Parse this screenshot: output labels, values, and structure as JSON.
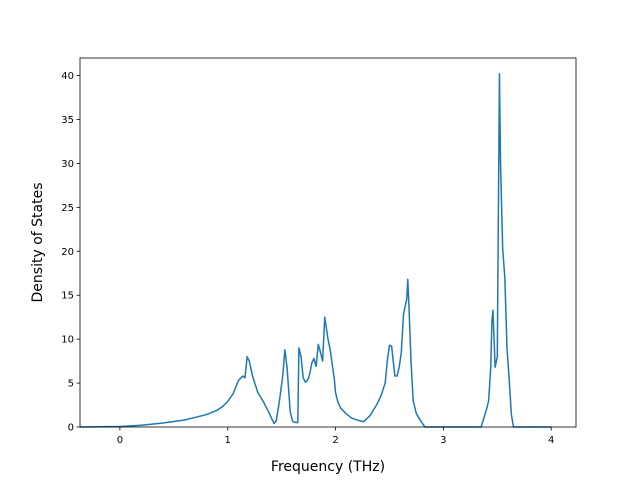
{
  "chart_data": {
    "type": "line",
    "title": "",
    "xlabel": "Frequency (THz)",
    "ylabel": "Density of States",
    "xlim": [
      -0.37,
      4.23
    ],
    "ylim": [
      0,
      42
    ],
    "xticks": [
      0,
      1,
      2,
      3,
      4
    ],
    "yticks": [
      0,
      5,
      10,
      15,
      20,
      25,
      30,
      35,
      40
    ],
    "xtick_labels": [
      "0",
      "1",
      "2",
      "3",
      "4"
    ],
    "ytick_labels": [
      "0",
      "5",
      "10",
      "15",
      "20",
      "25",
      "30",
      "35",
      "40"
    ],
    "grid": false,
    "legend": "none",
    "series": [
      {
        "color": "#1f77b4",
        "x": [
          -0.37,
          0.0,
          0.2,
          0.4,
          0.6,
          0.8,
          0.9,
          0.95,
          1.0,
          1.05,
          1.1,
          1.14,
          1.16,
          1.18,
          1.2,
          1.23,
          1.28,
          1.33,
          1.38,
          1.41,
          1.43,
          1.45,
          1.48,
          1.51,
          1.53,
          1.55,
          1.58,
          1.6,
          1.61,
          1.65,
          1.66,
          1.68,
          1.7,
          1.72,
          1.74,
          1.76,
          1.78,
          1.8,
          1.82,
          1.84,
          1.86,
          1.88,
          1.9,
          1.93,
          1.95,
          1.99,
          2.0,
          2.02,
          2.05,
          2.1,
          2.15,
          2.2,
          2.26,
          2.32,
          2.38,
          2.42,
          2.46,
          2.48,
          2.5,
          2.52,
          2.55,
          2.57,
          2.59,
          2.61,
          2.63,
          2.65,
          2.66,
          2.67,
          2.68,
          2.7,
          2.72,
          2.75,
          2.8,
          2.83,
          2.9,
          3.0,
          3.2,
          3.35,
          3.4,
          3.42,
          3.44,
          3.45,
          3.46,
          3.48,
          3.5,
          3.52,
          3.53,
          3.55,
          3.57,
          3.59,
          3.61,
          3.63,
          3.65,
          3.7,
          4.0
        ],
        "y": [
          0.0,
          0.05,
          0.2,
          0.45,
          0.8,
          1.4,
          1.9,
          2.3,
          2.9,
          3.8,
          5.3,
          5.8,
          5.6,
          8.0,
          7.5,
          5.8,
          3.9,
          2.9,
          1.7,
          0.9,
          0.4,
          0.7,
          3.0,
          5.8,
          8.8,
          6.8,
          1.7,
          0.7,
          0.55,
          0.5,
          9.0,
          8.0,
          5.6,
          5.1,
          5.3,
          6.0,
          7.3,
          7.8,
          6.9,
          9.4,
          8.5,
          7.5,
          12.5,
          10.0,
          8.8,
          5.3,
          3.9,
          2.9,
          2.1,
          1.5,
          1.0,
          0.8,
          0.6,
          1.3,
          2.5,
          3.5,
          5.0,
          7.5,
          9.3,
          9.2,
          5.8,
          5.8,
          6.8,
          8.5,
          12.8,
          14.0,
          14.5,
          16.8,
          14.0,
          7.5,
          3.0,
          1.5,
          0.5,
          0.0,
          0.0,
          0.0,
          0.0,
          0.0,
          2.0,
          3.0,
          7.0,
          12.0,
          13.3,
          6.8,
          8.0,
          40.2,
          30.0,
          20.3,
          17.0,
          9.0,
          5.5,
          1.5,
          0.0,
          0.0,
          0.0
        ]
      }
    ]
  }
}
